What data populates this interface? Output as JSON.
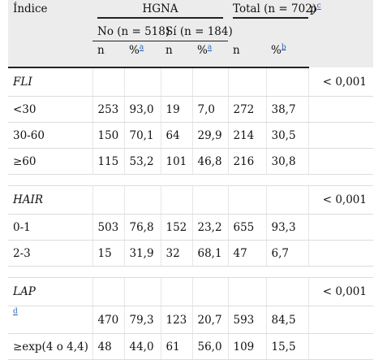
{
  "header": {
    "index_label": "Índice",
    "hgna_label": "HGNA",
    "total_label": "Total (n = 702)",
    "p_label": "p",
    "p_note": "c",
    "no_label": "No (n = 518)",
    "si_label": "Sí (n = 184)",
    "n_label": "n",
    "pct_label": "%",
    "pct_note_a": "a",
    "pct_note_b": "b"
  },
  "sections": [
    {
      "name": "FLI",
      "p_value": "< 0,001",
      "rows": [
        {
          "label": "<30",
          "no_n": "253",
          "no_pct": "93,0",
          "si_n": "19",
          "si_pct": "7,0",
          "total_n": "272",
          "total_pct": "38,7"
        },
        {
          "label": "30-60",
          "no_n": "150",
          "no_pct": "70,1",
          "si_n": "64",
          "si_pct": "29,9",
          "total_n": "214",
          "total_pct": "30,5"
        },
        {
          "label": "≥60",
          "no_n": "115",
          "no_pct": "53,2",
          "si_n": "101",
          "si_pct": "46,8",
          "total_n": "216",
          "total_pct": "30,8"
        }
      ]
    },
    {
      "name": "HAIR",
      "p_value": "< 0,001",
      "rows": [
        {
          "label": "0-1",
          "no_n": "503",
          "no_pct": "76,8",
          "si_n": "152",
          "si_pct": "23,2",
          "total_n": "655",
          "total_pct": "93,3"
        },
        {
          "label": "2-3",
          "no_n": "15",
          "no_pct": "31,9",
          "si_n": "32",
          "si_pct": "68,1",
          "total_n": "47",
          "total_pct": "6,7"
        }
      ]
    },
    {
      "name": "LAP",
      "p_value": "< 0,001",
      "rows": [
        {
          "label": "",
          "note": "d",
          "no_n": "470",
          "no_pct": "79,3",
          "si_n": "123",
          "si_pct": "20,7",
          "total_n": "593",
          "total_pct": "84,5"
        },
        {
          "label": "≥exp(4 o 4,4)",
          "no_n": "48",
          "no_pct": "44,0",
          "si_n": "61",
          "si_pct": "56,0",
          "total_n": "109",
          "total_pct": "15,5"
        }
      ]
    }
  ]
}
